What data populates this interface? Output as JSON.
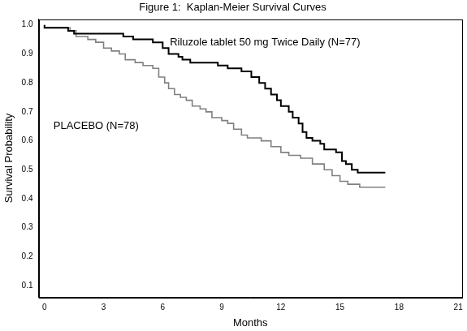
{
  "chart_data": {
    "type": "line",
    "title": "Figure 1:  Kaplan-Meier Survival Curves",
    "x_label": "Months",
    "y_label": "Survival Probability",
    "xlim": [
      -0.3,
      21.2
    ],
    "ylim": [
      0.06,
      1.02
    ],
    "xticks": [
      0,
      3,
      6,
      9,
      12,
      15,
      18,
      21
    ],
    "yticks": [
      0.1,
      0.2,
      0.3,
      0.4,
      0.5,
      0.6,
      0.7,
      0.8,
      0.9,
      {
        "value": 1,
        "label": "1.0"
      }
    ],
    "grid": false,
    "line_style": "step",
    "series": [
      {
        "name": "Riluzole tablet 50 mg Twice Daily (N=77)",
        "color": "#000000",
        "x": [
          0,
          1.2,
          1.5,
          4.0,
          4.5,
          5.5,
          6.0,
          6.3,
          6.8,
          7.0,
          7.4,
          8.8,
          9.3,
          10.0,
          10.5,
          10.9,
          11.2,
          11.5,
          11.8,
          12.0,
          12.4,
          12.6,
          12.9,
          13.1,
          13.3,
          13.6,
          14.0,
          14.2,
          14.8,
          15.1,
          15.3,
          15.6,
          15.9,
          16.5,
          17.3
        ],
        "values": [
          1.0,
          0.99,
          0.98,
          0.97,
          0.96,
          0.95,
          0.94,
          0.92,
          0.9,
          0.89,
          0.88,
          0.87,
          0.86,
          0.85,
          0.84,
          0.82,
          0.8,
          0.78,
          0.76,
          0.74,
          0.72,
          0.7,
          0.68,
          0.66,
          0.63,
          0.61,
          0.6,
          0.59,
          0.57,
          0.56,
          0.53,
          0.52,
          0.5,
          0.49,
          0.49
        ]
      },
      {
        "name": "PLACEBO (N=78)",
        "color": "#808080",
        "x": [
          0,
          1.3,
          1.6,
          2.2,
          2.6,
          3.0,
          3.4,
          3.8,
          4.1,
          4.6,
          5.0,
          5.5,
          5.8,
          6.1,
          6.3,
          6.6,
          6.9,
          7.2,
          7.5,
          7.9,
          8.2,
          8.5,
          9.0,
          9.3,
          9.6,
          10.0,
          10.3,
          11.0,
          11.5,
          12.0,
          12.4,
          13.0,
          13.6,
          14.2,
          14.6,
          15.0,
          15.4,
          16.0,
          16.4,
          17.3
        ],
        "values": [
          1.0,
          0.99,
          0.98,
          0.96,
          0.95,
          0.94,
          0.92,
          0.91,
          0.9,
          0.88,
          0.87,
          0.86,
          0.85,
          0.82,
          0.8,
          0.78,
          0.76,
          0.75,
          0.74,
          0.72,
          0.71,
          0.7,
          0.68,
          0.67,
          0.66,
          0.64,
          0.62,
          0.61,
          0.6,
          0.58,
          0.56,
          0.55,
          0.54,
          0.52,
          0.5,
          0.48,
          0.46,
          0.45,
          0.44,
          0.44
        ]
      }
    ]
  }
}
